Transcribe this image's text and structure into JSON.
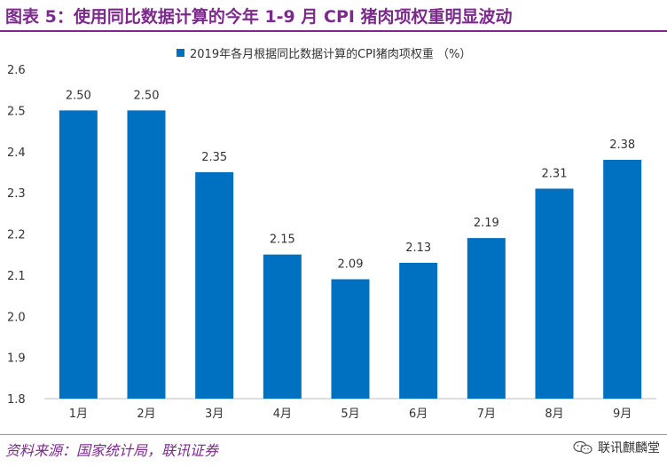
{
  "title": "图表 5：使用同比数据计算的今年 1-9 月 CPI 猪肉项权重明显波动",
  "source": "资料来源：国家统计局，联讯证券",
  "watermark": {
    "text": "联讯麒麟堂",
    "icon": "wechat-icon"
  },
  "colors": {
    "bar": "#0070c0",
    "title": "#7b2a8c"
  },
  "chart_data": {
    "type": "bar",
    "categories": [
      "1月",
      "2月",
      "3月",
      "4月",
      "5月",
      "6月",
      "7月",
      "8月",
      "9月"
    ],
    "series": [
      {
        "name": "2019年各月根据同比数据计算的CPI猪肉项权重 （%）",
        "values": [
          2.5,
          2.5,
          2.35,
          2.15,
          2.09,
          2.13,
          2.19,
          2.31,
          2.38
        ]
      }
    ],
    "value_labels": [
      "2.50",
      "2.50",
      "2.35",
      "2.15",
      "2.09",
      "2.13",
      "2.19",
      "2.31",
      "2.38"
    ],
    "yticks": [
      "1.8",
      "1.9",
      "2.0",
      "2.1",
      "2.2",
      "2.3",
      "2.4",
      "2.5",
      "2.6"
    ],
    "ylim": [
      1.8,
      2.6
    ],
    "grid": false,
    "legend": "top-center"
  }
}
